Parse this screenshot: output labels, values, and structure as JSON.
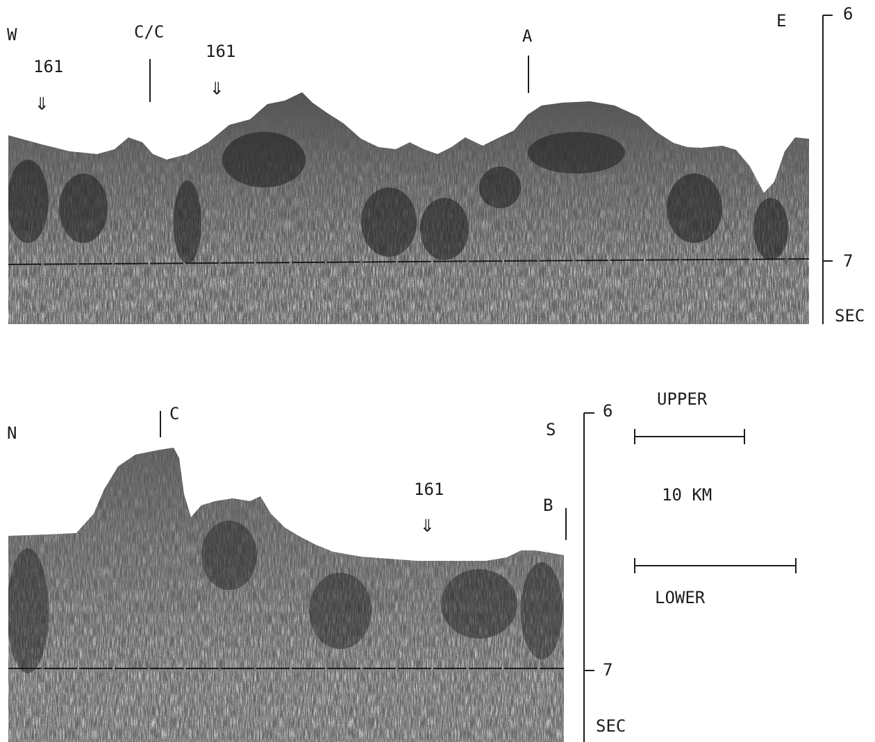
{
  "upper_profile": {
    "left_direction": "W",
    "right_direction": "E",
    "markers": [
      {
        "label": "161",
        "type": "site-arrow"
      },
      {
        "label": "C/C",
        "type": "tick"
      },
      {
        "label": "161",
        "type": "site-arrow"
      },
      {
        "label": "A",
        "type": "tick"
      }
    ],
    "time_scale": {
      "top": "6",
      "bottom": "7",
      "unit": "SEC"
    }
  },
  "lower_profile": {
    "left_direction": "N",
    "right_direction": "S",
    "markers": [
      {
        "label": "C",
        "type": "tick"
      },
      {
        "label": "161",
        "type": "site-arrow"
      },
      {
        "label": "B",
        "type": "tick"
      }
    ],
    "time_scale": {
      "top": "6",
      "bottom": "7",
      "unit": "SEC"
    }
  },
  "horizontal_scale": {
    "upper_label": "UPPER",
    "distance_label": "10 KM",
    "lower_label": "LOWER"
  },
  "colors": {
    "ink": "#1c1c1c",
    "sediment": "#d2d2d2"
  }
}
